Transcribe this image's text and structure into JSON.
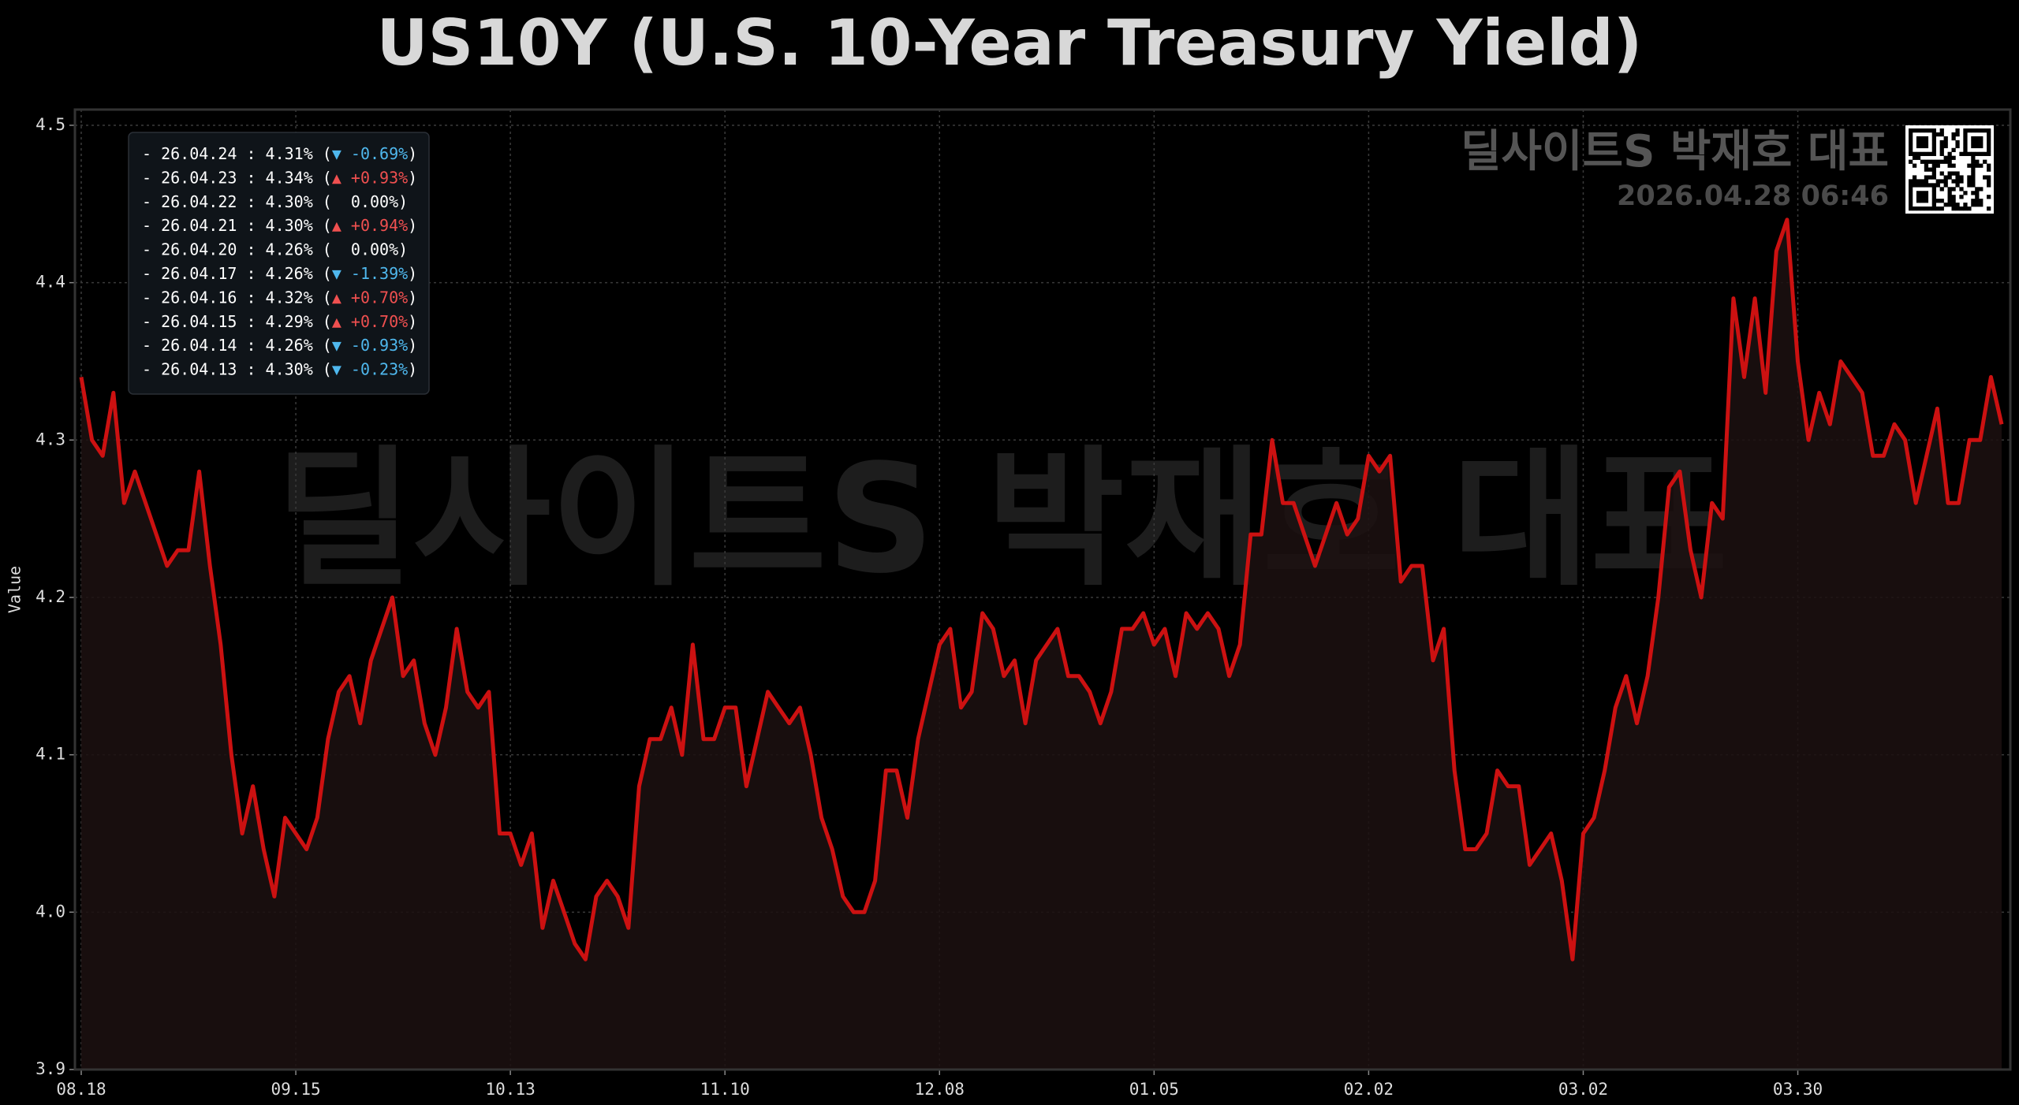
{
  "chart_data": {
    "type": "line",
    "title": "US10Y (U.S. 10-Year Treasury Yield)",
    "y_label": "Value",
    "watermark": "딜사이트S 박재호 대표",
    "brand": "딜사이트S 박재호 대표",
    "timestamp": "2026.04.28 06:46",
    "categories": [
      "08.18",
      null,
      null,
      null,
      null,
      null,
      null,
      null,
      null,
      null,
      null,
      null,
      null,
      null,
      null,
      null,
      null,
      null,
      null,
      null,
      "09.15",
      null,
      null,
      null,
      null,
      null,
      null,
      null,
      null,
      null,
      null,
      null,
      null,
      null,
      null,
      null,
      null,
      null,
      null,
      null,
      "10.13",
      null,
      null,
      null,
      null,
      null,
      null,
      null,
      null,
      null,
      null,
      null,
      null,
      null,
      null,
      null,
      null,
      null,
      null,
      null,
      "11.10",
      null,
      null,
      null,
      null,
      null,
      null,
      null,
      null,
      null,
      null,
      null,
      null,
      null,
      null,
      null,
      null,
      null,
      null,
      null,
      "12.08",
      null,
      null,
      null,
      null,
      null,
      null,
      null,
      null,
      null,
      null,
      null,
      null,
      null,
      null,
      null,
      null,
      null,
      null,
      null,
      "01.05",
      null,
      null,
      null,
      null,
      null,
      null,
      null,
      null,
      null,
      null,
      null,
      null,
      null,
      null,
      null,
      null,
      null,
      null,
      null,
      "02.02",
      null,
      null,
      null,
      null,
      null,
      null,
      null,
      null,
      null,
      null,
      null,
      null,
      null,
      null,
      null,
      null,
      null,
      null,
      null,
      "03.02",
      null,
      null,
      null,
      null,
      null,
      null,
      null,
      null,
      null,
      null,
      null,
      null,
      null,
      null,
      null,
      null,
      null,
      null,
      null,
      "03.30",
      null,
      null,
      null,
      null,
      null,
      null,
      null,
      null,
      null,
      null,
      null,
      null,
      null,
      null,
      null,
      null,
      null,
      null,
      null
    ],
    "series": [
      {
        "color": "#cc1111",
        "fill": "#1c1111",
        "values": [
          4.34,
          4.3,
          4.29,
          4.33,
          4.26,
          4.28,
          4.26,
          4.24,
          4.22,
          4.23,
          4.23,
          4.28,
          4.22,
          4.17,
          4.1,
          4.05,
          4.08,
          4.04,
          4.01,
          4.06,
          4.05,
          4.04,
          4.06,
          4.11,
          4.14,
          4.15,
          4.12,
          4.16,
          4.18,
          4.2,
          4.15,
          4.16,
          4.12,
          4.1,
          4.13,
          4.18,
          4.14,
          4.13,
          4.14,
          4.05,
          4.05,
          4.03,
          4.05,
          3.99,
          4.02,
          4.0,
          3.98,
          3.97,
          4.01,
          4.02,
          4.01,
          3.99,
          4.08,
          4.11,
          4.11,
          4.13,
          4.1,
          4.17,
          4.11,
          4.11,
          4.13,
          4.13,
          4.08,
          4.11,
          4.14,
          4.13,
          4.12,
          4.13,
          4.1,
          4.06,
          4.04,
          4.01,
          4.0,
          4.0,
          4.02,
          4.09,
          4.09,
          4.06,
          4.11,
          4.14,
          4.17,
          4.18,
          4.13,
          4.14,
          4.19,
          4.18,
          4.15,
          4.16,
          4.12,
          4.16,
          4.17,
          4.18,
          4.15,
          4.15,
          4.14,
          4.12,
          4.14,
          4.18,
          4.18,
          4.19,
          4.17,
          4.18,
          4.15,
          4.19,
          4.18,
          4.19,
          4.18,
          4.15,
          4.17,
          4.24,
          4.24,
          4.3,
          4.26,
          4.26,
          4.24,
          4.22,
          4.24,
          4.26,
          4.24,
          4.25,
          4.29,
          4.28,
          4.29,
          4.21,
          4.22,
          4.22,
          4.16,
          4.18,
          4.09,
          4.04,
          4.04,
          4.05,
          4.09,
          4.08,
          4.08,
          4.03,
          4.04,
          4.05,
          4.02,
          3.97,
          4.05,
          4.06,
          4.09,
          4.13,
          4.15,
          4.12,
          4.15,
          4.2,
          4.27,
          4.28,
          4.23,
          4.2,
          4.26,
          4.25,
          4.39,
          4.34,
          4.39,
          4.33,
          4.42,
          4.44,
          4.35,
          4.3,
          4.33,
          4.31,
          4.35,
          4.34,
          4.33,
          4.29,
          4.29,
          4.31,
          4.3,
          4.26,
          4.29,
          4.32,
          4.26,
          4.26,
          4.3,
          4.3,
          4.34,
          4.31
        ]
      }
    ],
    "ylim": [
      3.9,
      4.51
    ],
    "yticks": [
      3.9,
      {
        "value": 4.0,
        "label": "4.0"
      },
      4.1,
      4.2,
      4.3,
      4.4,
      4.5
    ],
    "grid": true,
    "legend_lines": [
      {
        "prefix": "- 26.04.24 : 4.31% (",
        "change": "▼ -0.69%",
        "suffix": ")",
        "color": "#4fb8ee"
      },
      {
        "prefix": "- 26.04.23 : 4.34% (",
        "change": "▲ +0.93%",
        "suffix": ")",
        "color": "#f05050"
      },
      {
        "prefix": "- 26.04.22 : 4.30% (",
        "change": "  0.00%",
        "suffix": ")",
        "color": "#ffffff"
      },
      {
        "prefix": "- 26.04.21 : 4.30% (",
        "change": "▲ +0.94%",
        "suffix": ")",
        "color": "#f05050"
      },
      {
        "prefix": "- 26.04.20 : 4.26% (",
        "change": "  0.00%",
        "suffix": ")",
        "color": "#ffffff"
      },
      {
        "prefix": "- 26.04.17 : 4.26% (",
        "change": "▼ -1.39%",
        "suffix": ")",
        "color": "#4fb8ee"
      },
      {
        "prefix": "- 26.04.16 : 4.32% (",
        "change": "▲ +0.70%",
        "suffix": ")",
        "color": "#f05050"
      },
      {
        "prefix": "- 26.04.15 : 4.29% (",
        "change": "▲ +0.70%",
        "suffix": ")",
        "color": "#f05050"
      },
      {
        "prefix": "- 26.04.14 : 4.26% (",
        "change": "▼ -0.93%",
        "suffix": ")",
        "color": "#4fb8ee"
      },
      {
        "prefix": "- 26.04.13 : 4.30% (",
        "change": "▼ -0.23%",
        "suffix": ")",
        "color": "#4fb8ee"
      }
    ]
  }
}
